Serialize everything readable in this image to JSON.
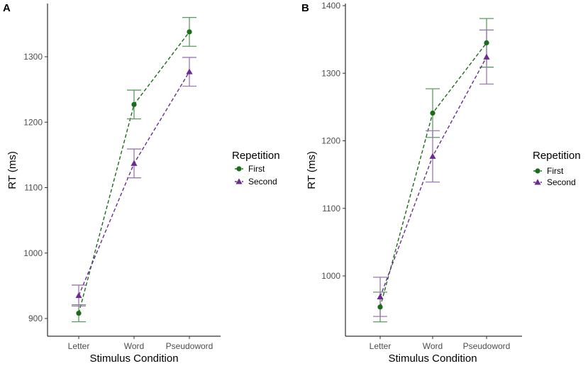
{
  "colors": {
    "first": "#1a6b1a",
    "second": "#6a2c91",
    "first_error": "#5e9a5e",
    "second_error": "#9b77b6",
    "axis": "#000000",
    "tick_text": "#4d4d4d"
  },
  "chart_data": [
    {
      "type": "line",
      "panel_label": "A",
      "xlabel": "Stimulus Condition",
      "ylabel": "RT (ms)",
      "categories": [
        "Letter",
        "Word",
        "Pseudoword"
      ],
      "ylim": [
        880,
        1370
      ],
      "yticks": [
        900,
        1000,
        1100,
        1200,
        1300
      ],
      "legend": {
        "title": "Repetition",
        "position": "right"
      },
      "series": [
        {
          "name": "First",
          "marker": "circle",
          "line_style": "dashed",
          "values": [
            908,
            1227,
            1338
          ],
          "lower": [
            895,
            1205,
            1316
          ],
          "upper": [
            921,
            1249,
            1360
          ]
        },
        {
          "name": "Second",
          "marker": "triangle",
          "line_style": "dashed",
          "values": [
            935,
            1137,
            1277
          ],
          "lower": [
            919,
            1115,
            1255
          ],
          "upper": [
            951,
            1159,
            1299
          ]
        }
      ]
    },
    {
      "type": "line",
      "panel_label": "B",
      "xlabel": "Stimulus Condition",
      "ylabel": "RT (ms)",
      "categories": [
        "Letter",
        "Word",
        "Pseudoword"
      ],
      "ylim": [
        930,
        1405
      ],
      "yticks": [
        1000,
        1100,
        1200,
        1300,
        1400
      ],
      "legend": {
        "title": "Repetition",
        "position": "right"
      },
      "series": [
        {
          "name": "First",
          "marker": "circle",
          "line_style": "dashed",
          "values": [
            954,
            1241,
            1345
          ],
          "lower": [
            932,
            1205,
            1309
          ],
          "upper": [
            976,
            1277,
            1381
          ]
        },
        {
          "name": "Second",
          "marker": "triangle",
          "line_style": "dashed",
          "values": [
            969,
            1177,
            1324
          ],
          "lower": [
            940,
            1139,
            1284
          ],
          "upper": [
            998,
            1215,
            1364
          ]
        }
      ]
    }
  ]
}
